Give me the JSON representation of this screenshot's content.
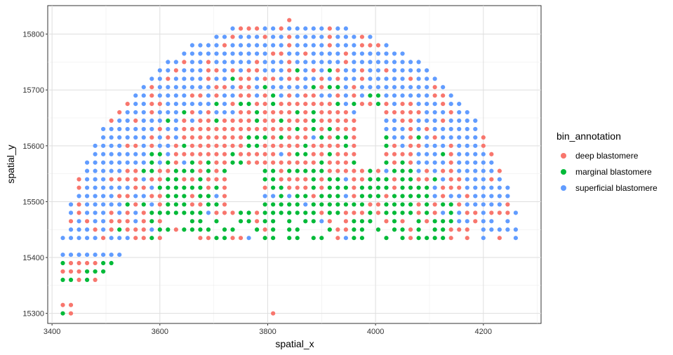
{
  "chart_data": {
    "type": "scatter",
    "xlabel": "spatial_x",
    "ylabel": "spatial_y",
    "xlim": [
      3392,
      4307
    ],
    "ylim": [
      15282,
      15851
    ],
    "xticks": [
      3400,
      3600,
      3800,
      4000,
      4200
    ],
    "yticks": [
      15300,
      15400,
      15500,
      15600,
      15700,
      15800
    ],
    "grid": true,
    "spacing": 15,
    "legend": {
      "title": "bin_annotation",
      "position": "right",
      "entries": [
        {
          "name": "deep blastomere",
          "color": "#F8766D"
        },
        {
          "name": "marginal blastomere",
          "color": "#00BA38"
        },
        {
          "name": "superficial blastomere",
          "color": "#619CFF"
        }
      ]
    },
    "series": [
      {
        "name": "deep blastomere",
        "color": "#F8766D"
      },
      {
        "name": "marginal blastomere",
        "color": "#00BA38"
      },
      {
        "name": "superficial blastomere",
        "color": "#619CFF"
      }
    ],
    "dome_points": [
      [
        3420,
        15300
      ],
      [
        3435,
        15300
      ],
      [
        3420,
        15315
      ],
      [
        3435,
        15315
      ],
      [
        3810,
        15300
      ]
    ],
    "shape": {
      "center_x": 3845,
      "top_y": 15825,
      "radius_x": 430,
      "radius_y": 480,
      "base_rows_left": [
        [
          15360,
          3420,
          3480
        ],
        [
          15375,
          3420,
          3495
        ],
        [
          15390,
          3420,
          3510
        ],
        [
          15405,
          3420,
          3525
        ]
      ],
      "gaps": [
        [
          3730,
          3780,
          15490,
          15560
        ],
        [
          3975,
          4010,
          15570,
          15660
        ]
      ]
    }
  }
}
